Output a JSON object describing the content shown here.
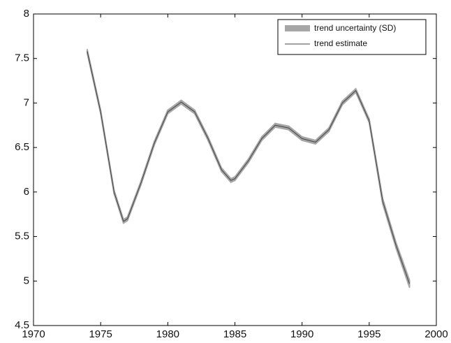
{
  "chart_data": {
    "type": "line",
    "x": [
      1974,
      1975,
      1976,
      1976.7,
      1977,
      1978,
      1979,
      1980,
      1981,
      1982,
      1983,
      1984,
      1984.7,
      1985,
      1986,
      1987,
      1988,
      1989,
      1990,
      1991,
      1992,
      1993,
      1994,
      1995,
      1996,
      1997,
      1998
    ],
    "series": [
      {
        "name": "trend estimate",
        "color": "#444444",
        "values": [
          7.58,
          6.9,
          6.0,
          5.67,
          5.7,
          6.1,
          6.55,
          6.9,
          7.01,
          6.9,
          6.6,
          6.25,
          6.13,
          6.15,
          6.35,
          6.6,
          6.75,
          6.72,
          6.6,
          6.56,
          6.7,
          7.0,
          7.14,
          6.8,
          5.9,
          5.4,
          4.97
        ]
      }
    ],
    "band": {
      "name": "trend uncertainty (SD)",
      "color": "#a6a6a6",
      "sd": [
        0.02,
        0.02,
        0.02,
        0.02,
        0.02,
        0.02,
        0.02,
        0.02,
        0.02,
        0.02,
        0.02,
        0.02,
        0.02,
        0.02,
        0.02,
        0.02,
        0.02,
        0.02,
        0.02,
        0.02,
        0.02,
        0.02,
        0.02,
        0.02,
        0.03,
        0.03,
        0.04
      ]
    },
    "xlim": [
      1970,
      2000
    ],
    "xticks": [
      1970,
      1975,
      1980,
      1985,
      1990,
      1995,
      2000
    ],
    "ylim": [
      4.5,
      8
    ],
    "yticks": [
      4.5,
      5,
      5.5,
      6,
      6.5,
      7,
      7.5,
      8
    ],
    "legend": "upper right"
  }
}
